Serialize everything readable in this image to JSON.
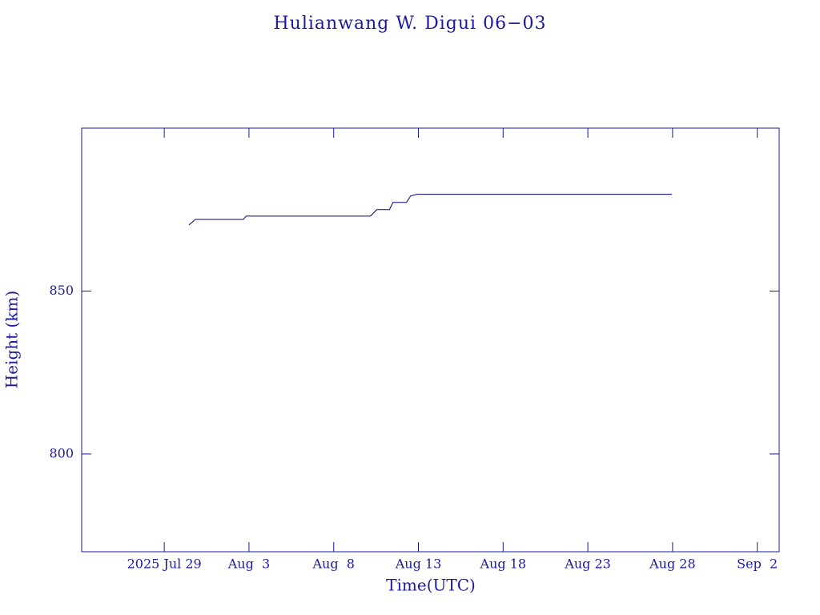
{
  "chart_data": {
    "type": "line",
    "title": "Hulianwang W. Digui 06−03",
    "xlabel": "Time(UTC)",
    "ylabel": "Height (km)",
    "color": "#000080",
    "x": [
      "2025-07-30T11:00",
      "2025-07-30T20:00",
      "2025-08-02T16:00",
      "2025-08-02T20:00",
      "2025-08-10T04:00",
      "2025-08-10T13:00",
      "2025-08-11T07:00",
      "2025-08-11T12:00",
      "2025-08-12T07:00",
      "2025-08-12T13:00",
      "2025-08-12T22:00",
      "2025-08-27T23:00"
    ],
    "series": [
      {
        "name": "Height",
        "color": "#000080",
        "values": [
          870.3,
          872,
          872,
          873,
          873,
          875,
          875,
          877.2,
          877.2,
          879.2,
          879.7,
          879.7
        ]
      }
    ],
    "xlim": [
      "2025-07-24T03:00",
      "2025-09-03T07:00"
    ],
    "xticks": [
      {
        "value": "2025-07-29",
        "label": "2025 Jul 29"
      },
      {
        "value": "2025-08-03",
        "label": "Aug  3"
      },
      {
        "value": "2025-08-08",
        "label": "Aug  8"
      },
      {
        "value": "2025-08-13",
        "label": "Aug 13"
      },
      {
        "value": "2025-08-18",
        "label": "Aug 18"
      },
      {
        "value": "2025-08-23",
        "label": "Aug 23"
      },
      {
        "value": "2025-08-28",
        "label": "Aug 28"
      },
      {
        "value": "2025-09-02",
        "label": "Sep  2"
      }
    ],
    "ylim": [
      770,
      900
    ],
    "yticks": [
      800,
      850
    ],
    "grid": false
  }
}
